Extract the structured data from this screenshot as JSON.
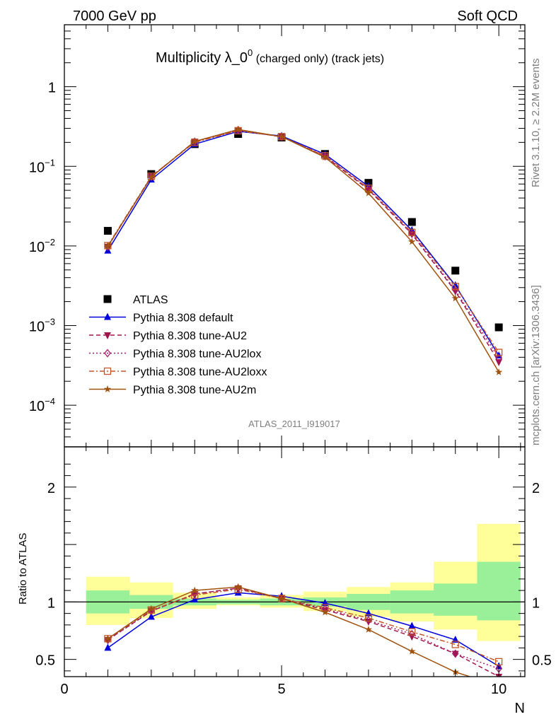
{
  "header": {
    "left": "7000 GeV pp",
    "right": "Soft QCD"
  },
  "title": {
    "main": "Multiplicity λ_0",
    "sup": "0",
    "sub": " (charged only) (track jets)"
  },
  "side_labels": {
    "top": "Rivet 3.1.10, ≥ 2.2M events",
    "bottom": "mcplots.cern.ch [arXiv:1306.3436]"
  },
  "watermark": "ATLAS_2011_I919017",
  "ratio_ylabel": "Ratio to ATLAS",
  "xlabel": "N",
  "colors": {
    "atlas": "#000000",
    "default": "#0000dd",
    "au2": "#a0154a",
    "au2lox": "#a01a6a",
    "au2loxx": "#c4562a",
    "au2m": "#a0520f",
    "band_inner": "#99f099",
    "band_outer": "#ffff99"
  },
  "chart_data": [
    {
      "type": "line",
      "yscale": "log",
      "xlim": [
        0,
        10.6
      ],
      "ylim": [
        3e-05,
        6
      ],
      "y_ticks": [
        {
          "value": 0.0001,
          "base": "10",
          "exp": "−4"
        },
        {
          "value": 0.001,
          "base": "10",
          "exp": "−3"
        },
        {
          "value": 0.01,
          "base": "10",
          "exp": "−2"
        },
        {
          "value": 0.1,
          "base": "10",
          "exp": "−1"
        },
        {
          "value": 1,
          "base": "1",
          "exp": ""
        }
      ],
      "x": [
        1,
        2,
        3,
        4,
        5,
        6,
        7,
        8,
        9,
        10
      ],
      "legend_position": "bottom-left",
      "series": [
        {
          "name": "ATLAS",
          "marker": "square",
          "style": "none",
          "values": [
            0.0155,
            0.08,
            0.19,
            0.255,
            0.23,
            0.143,
            0.062,
            0.02,
            0.0049,
            0.00095
          ]
        },
        {
          "name": "Pythia 8.308 default",
          "marker": "triangle-up",
          "style": "solid",
          "values": [
            0.0087,
            0.068,
            0.19,
            0.275,
            0.24,
            0.142,
            0.056,
            0.0157,
            0.0032,
            0.00042
          ]
        },
        {
          "name": "Pythia 8.308 tune-AU2",
          "marker": "triangle-down",
          "style": "dashed",
          "values": [
            0.0098,
            0.074,
            0.205,
            0.285,
            0.235,
            0.133,
            0.051,
            0.0141,
            0.0027,
            0.00035
          ]
        },
        {
          "name": "Pythia 8.308 tune-AU2lox",
          "marker": "diamond",
          "style": "dotted",
          "values": [
            0.0098,
            0.074,
            0.204,
            0.285,
            0.235,
            0.134,
            0.052,
            0.0143,
            0.0028,
            0.00039
          ]
        },
        {
          "name": "Pythia 8.308 tune-AU2loxx",
          "marker": "square-open",
          "style": "dashdot",
          "values": [
            0.0101,
            0.075,
            0.2,
            0.28,
            0.236,
            0.136,
            0.053,
            0.0148,
            0.0031,
            0.00046
          ]
        },
        {
          "name": "Pythia 8.308 tune-AU2m",
          "marker": "star",
          "style": "solid",
          "values": [
            0.0099,
            0.073,
            0.205,
            0.29,
            0.236,
            0.13,
            0.046,
            0.0113,
            0.0022,
            0.00026
          ]
        }
      ]
    },
    {
      "type": "line",
      "xlim": [
        0,
        10.6
      ],
      "ylim": [
        0.35,
        2.35
      ],
      "x_ticks": [
        0,
        5,
        10
      ],
      "y_ticks": [
        0.5,
        1,
        2
      ],
      "x": [
        1,
        2,
        3,
        4,
        5,
        6,
        7,
        8,
        9,
        10
      ],
      "band_edges": [
        0.5,
        1.5,
        2.5,
        3.5,
        4.5,
        5.5,
        6.5,
        7.5,
        8.5,
        9.5,
        10.5
      ],
      "band_inner": [
        [
          0.9,
          1.1
        ],
        [
          0.94,
          1.06
        ],
        [
          0.97,
          1.03
        ],
        [
          0.98,
          1.02
        ],
        [
          0.97,
          1.03
        ],
        [
          0.96,
          1.04
        ],
        [
          0.93,
          1.07
        ],
        [
          0.9,
          1.1
        ],
        [
          0.88,
          1.16
        ],
        [
          0.84,
          1.35
        ]
      ],
      "band_outer": [
        [
          0.8,
          1.22
        ],
        [
          0.86,
          1.17
        ],
        [
          0.94,
          1.08
        ],
        [
          0.97,
          1.04
        ],
        [
          0.95,
          1.06
        ],
        [
          0.92,
          1.09
        ],
        [
          0.87,
          1.13
        ],
        [
          0.83,
          1.17
        ],
        [
          0.76,
          1.35
        ],
        [
          0.66,
          1.68
        ]
      ],
      "series": [
        {
          "name": "Pythia 8.308 default",
          "values": [
            0.6,
            0.87,
            1.02,
            1.08,
            1.05,
            0.99,
            0.9,
            0.79,
            0.67,
            0.44
          ]
        },
        {
          "name": "Pythia 8.308 tune-AU2",
          "values": [
            0.67,
            0.92,
            1.07,
            1.12,
            1.03,
            0.93,
            0.83,
            0.7,
            0.55,
            0.35
          ]
        },
        {
          "name": "Pythia 8.308 tune-AU2lox",
          "values": [
            0.67,
            0.92,
            1.07,
            1.12,
            1.03,
            0.94,
            0.84,
            0.72,
            0.55,
            0.42
          ]
        },
        {
          "name": "Pythia 8.308 tune-AU2loxx",
          "values": [
            0.68,
            0.93,
            1.06,
            1.11,
            1.03,
            0.95,
            0.86,
            0.74,
            0.63,
            0.48
          ]
        },
        {
          "name": "Pythia 8.308 tune-AU2m",
          "values": [
            0.68,
            0.94,
            1.1,
            1.13,
            1.03,
            0.91,
            0.76,
            0.57,
            0.39,
            0.27
          ]
        }
      ]
    }
  ]
}
